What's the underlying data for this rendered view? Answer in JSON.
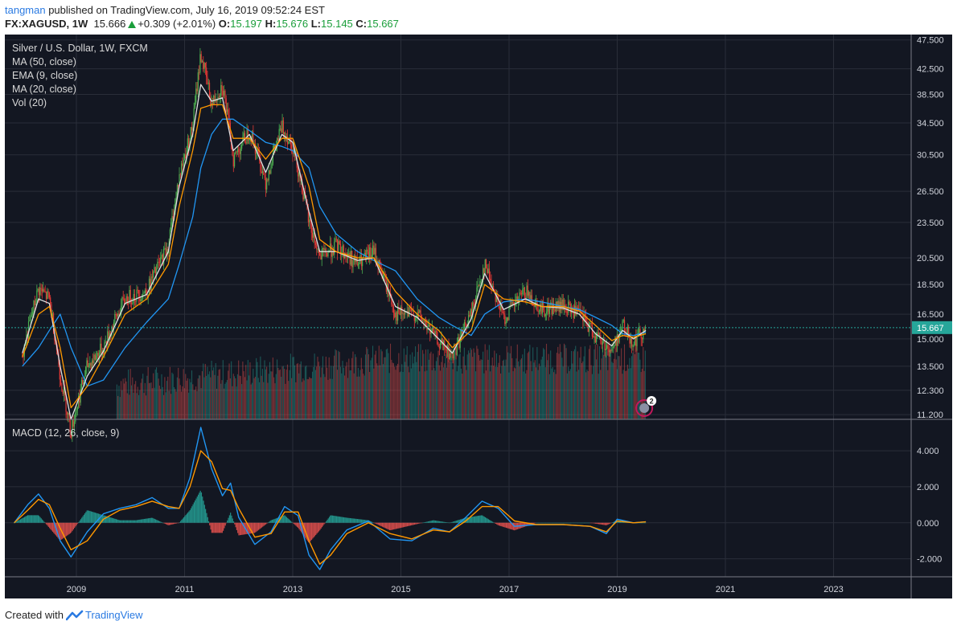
{
  "header": {
    "user": "tangman",
    "published": " published on TradingView.com, July 16, 2019 09:52:24 EST",
    "symbol": "FX:XAGUSD, 1W",
    "price": "15.666",
    "change": "+0.309 (+2.01%)",
    "o_label": "O:",
    "o_value": "15.197",
    "h_label": "H:",
    "h_value": "15.676",
    "l_label": "L:",
    "l_value": "15.145",
    "c_label": "C:",
    "c_value": "15.667"
  },
  "legend": {
    "title": "Silver / U.S. Dollar, 1W, FXCM",
    "ma50": "MA (50, close)",
    "ema9": "EMA (9, close)",
    "ma20": "MA (20, close)",
    "vol": "Vol (20)",
    "macd": "MACD (12, 26, close, 9)"
  },
  "footer": {
    "created_with": "Created with",
    "brand": "TradingView"
  },
  "colors": {
    "background": "#131722",
    "grid": "#2a2e39",
    "up": "#26a69a",
    "down": "#ef5350",
    "candle_up": "#4caf50",
    "candle_down": "#e53935",
    "ma50": "#2196f3",
    "ema9": "#e0e0e0",
    "ma20": "#ff9800",
    "macd": "#2196f3",
    "signal": "#ff9800",
    "last_price_badge": "#26a69a"
  },
  "event_badge": "2",
  "chart_data": [
    {
      "type": "line",
      "title": "Silver / U.S. Dollar, 1W, FXCM",
      "x_ticks": [
        "2009",
        "2011",
        "2013",
        "2015",
        "2017",
        "2019",
        "2021",
        "2023"
      ],
      "y_ticks": [
        "47.500",
        "42.500",
        "38.500",
        "34.500",
        "30.500",
        "26.500",
        "23.500",
        "20.500",
        "18.500",
        "16.500",
        "15.000",
        "13.500",
        "12.300",
        "11.200"
      ],
      "ylim": [
        11.0,
        48.5
      ],
      "y_scale": "log",
      "last_price": "15.667",
      "x": [
        2008.0,
        2008.3,
        2008.5,
        2008.7,
        2008.9,
        2009.2,
        2009.5,
        2009.9,
        2010.3,
        2010.7,
        2010.9,
        2011.15,
        2011.3,
        2011.5,
        2011.7,
        2011.9,
        2012.2,
        2012.5,
        2012.8,
        2013.0,
        2013.3,
        2013.5,
        2013.8,
        2014.2,
        2014.5,
        2014.9,
        2015.3,
        2015.7,
        2015.95,
        2016.3,
        2016.55,
        2016.9,
        2017.3,
        2017.6,
        2018.0,
        2018.3,
        2018.6,
        2018.9,
        2019.1,
        2019.3,
        2019.53
      ],
      "series": [
        {
          "values": [
            14.0,
            18.2,
            17.5,
            13.0,
            10.5,
            13.5,
            14.5,
            17.5,
            18.0,
            21.5,
            28.0,
            34.0,
            45.0,
            37.0,
            40.0,
            30.0,
            33.5,
            27.5,
            34.0,
            31.5,
            23.5,
            20.5,
            21.5,
            20.0,
            21.0,
            16.5,
            16.5,
            14.8,
            14.0,
            16.5,
            20.0,
            16.2,
            18.0,
            16.8,
            17.0,
            16.5,
            15.2,
            14.3,
            15.8,
            14.8,
            15.7
          ]
        },
        {
          "name": "MA (50, close)",
          "values": [
            13.5,
            14.5,
            15.5,
            16.5,
            14.5,
            12.5,
            12.8,
            14.5,
            16.0,
            17.5,
            20.0,
            24.0,
            29.0,
            33.0,
            35.0,
            35.0,
            33.5,
            32.0,
            31.5,
            31.0,
            29.0,
            25.0,
            22.5,
            21.0,
            20.3,
            19.5,
            17.5,
            16.3,
            15.8,
            15.2,
            16.5,
            17.3,
            17.5,
            17.3,
            17.0,
            16.8,
            16.3,
            15.8,
            15.3,
            15.2,
            15.4
          ]
        },
        {
          "name": "EMA (9, close)",
          "values": [
            14.2,
            17.5,
            17.2,
            13.5,
            11.0,
            13.0,
            14.3,
            17.2,
            17.8,
            21.0,
            27.0,
            33.0,
            40.0,
            37.5,
            38.0,
            31.0,
            33.0,
            28.5,
            33.0,
            32.0,
            24.5,
            21.0,
            21.0,
            20.3,
            20.5,
            17.0,
            16.3,
            15.0,
            14.2,
            16.2,
            19.3,
            16.8,
            17.5,
            17.0,
            16.9,
            16.5,
            15.3,
            14.6,
            15.5,
            15.0,
            15.5
          ]
        },
        {
          "name": "MA (20, close)",
          "values": [
            14.0,
            16.5,
            17.0,
            14.5,
            11.5,
            12.5,
            14.0,
            16.5,
            17.5,
            20.0,
            25.0,
            31.0,
            36.5,
            37.0,
            37.0,
            32.5,
            32.5,
            30.0,
            32.5,
            32.5,
            27.0,
            22.0,
            21.0,
            20.5,
            20.5,
            18.0,
            16.5,
            15.5,
            14.5,
            15.5,
            18.5,
            17.5,
            17.3,
            17.0,
            17.0,
            16.7,
            15.8,
            14.9,
            15.2,
            15.1,
            15.3
          ]
        }
      ]
    },
    {
      "type": "line",
      "title": "MACD (12, 26, close, 9)",
      "y_ticks": [
        "4.000",
        "2.000",
        "0.000",
        "-2.000"
      ],
      "ylim": [
        -3.0,
        5.7
      ],
      "x": [
        2007.85,
        2008.1,
        2008.3,
        2008.5,
        2008.7,
        2008.9,
        2009.2,
        2009.5,
        2009.8,
        2010.1,
        2010.4,
        2010.7,
        2010.9,
        2011.1,
        2011.3,
        2011.5,
        2011.7,
        2011.85,
        2012.0,
        2012.3,
        2012.6,
        2012.85,
        2013.1,
        2013.3,
        2013.5,
        2013.7,
        2014.0,
        2014.4,
        2014.8,
        2015.2,
        2015.6,
        2015.9,
        2016.2,
        2016.5,
        2016.8,
        2017.1,
        2017.5,
        2018.0,
        2018.5,
        2018.8,
        2019.0,
        2019.3,
        2019.53
      ],
      "series": [
        {
          "name": "MACD",
          "values": [
            0.0,
            1.0,
            1.6,
            0.8,
            -1.0,
            -1.9,
            -0.5,
            0.5,
            0.8,
            1.0,
            1.4,
            0.8,
            0.8,
            2.5,
            5.3,
            3.0,
            1.5,
            2.2,
            0.3,
            -1.2,
            -0.5,
            0.9,
            0.4,
            -1.8,
            -2.6,
            -1.5,
            -0.4,
            0.1,
            -0.9,
            -1.0,
            -0.3,
            -0.5,
            0.3,
            1.2,
            0.8,
            -0.2,
            -0.1,
            -0.1,
            -0.2,
            -0.6,
            0.2,
            0.0,
            0.05
          ]
        },
        {
          "name": "Signal",
          "values": [
            0.0,
            0.7,
            1.3,
            1.0,
            -0.3,
            -1.5,
            -1.0,
            0.2,
            0.7,
            0.9,
            1.2,
            0.9,
            0.8,
            2.0,
            4.0,
            3.4,
            1.9,
            1.8,
            0.8,
            -0.8,
            -0.6,
            0.6,
            0.6,
            -1.0,
            -2.3,
            -1.8,
            -0.6,
            0.0,
            -0.6,
            -0.9,
            -0.4,
            -0.5,
            0.1,
            0.9,
            0.9,
            0.1,
            -0.1,
            -0.1,
            -0.2,
            -0.5,
            0.1,
            0.0,
            0.05
          ]
        }
      ]
    }
  ]
}
